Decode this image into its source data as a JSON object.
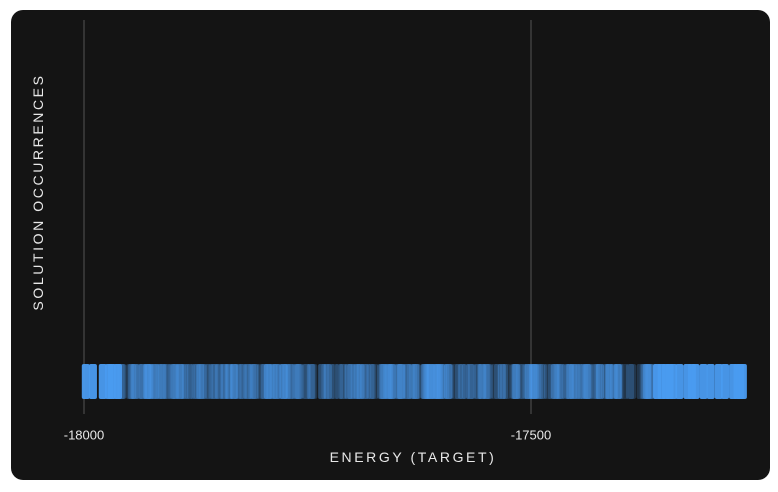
{
  "chart_data": {
    "type": "scatter",
    "title": "",
    "xlabel": "ENERGY (TARGET)",
    "ylabel": "SOLUTION OCCURRENCES",
    "xlim": [
      -18008,
      -17258
    ],
    "x_ticks": [
      -18000,
      -17500
    ],
    "x_tick_labels": [
      "-18000",
      "-17500"
    ],
    "grid": "vertical lines at x ticks",
    "series": [
      {
        "marker": "rounded-vertical-bar",
        "color": "#4a9bf0",
        "opacity_dense": 0.25,
        "opacity_sparse": 0.95,
        "sparse_x": [
          -17998,
          -17990,
          -17979,
          -17972,
          -17969,
          -17962,
          -17359,
          -17354,
          -17349,
          -17345,
          -17341,
          -17334,
          -17325,
          -17320,
          -17316,
          -17307,
          -17299,
          -17290,
          -17283,
          -17274,
          -17269,
          -17266,
          -17263
        ],
        "dense_range": [
          -17965,
          -17362
        ],
        "dense_count": 300
      }
    ]
  },
  "colors": {
    "background": "#141414",
    "grid": "#555555",
    "marker": "#4a9bf0",
    "text": "#e8e8e8"
  }
}
